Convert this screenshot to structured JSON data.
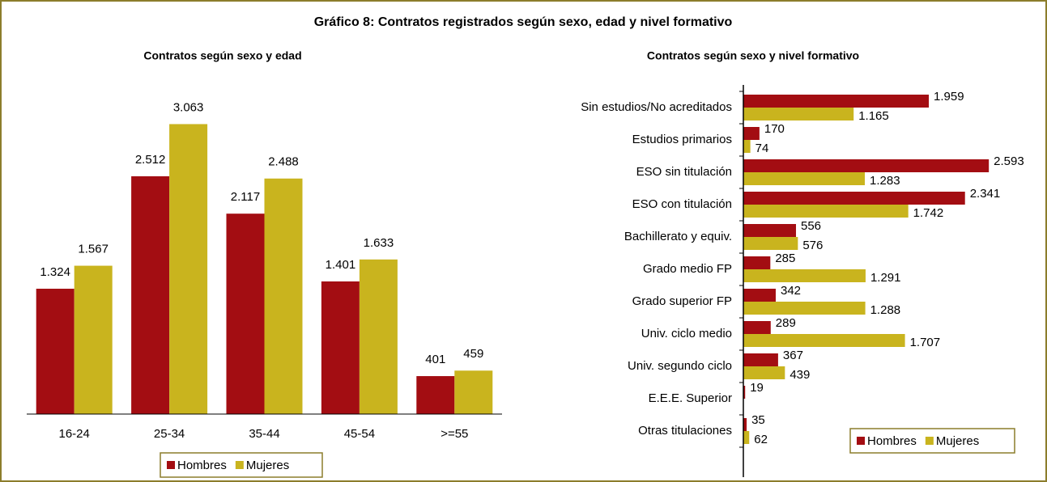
{
  "title": "Gráfico 8: Contratos registrados según sexo, edad y nivel formativo",
  "chart_data": [
    {
      "type": "bar",
      "title": "Contratos según sexo y edad",
      "categories": [
        "16-24",
        "25-34",
        "35-44",
        "45-54",
        ">=55"
      ],
      "series": [
        {
          "name": "Hombres",
          "color": "#a30d12",
          "values": [
            1324,
            2512,
            2117,
            1401,
            401
          ],
          "value_labels": [
            "1.324",
            "2.512",
            "2.117",
            "1.401",
            "401"
          ]
        },
        {
          "name": "Mujeres",
          "color": "#c9b41e",
          "values": [
            1567,
            3063,
            2488,
            1633,
            459
          ],
          "value_labels": [
            "1.567",
            "3.063",
            "2.488",
            "1.633",
            "459"
          ]
        }
      ],
      "ylim": [
        0,
        3400
      ],
      "legend": "bottom"
    },
    {
      "type": "hbar",
      "title": "Contratos según sexo y nivel formativo",
      "categories": [
        "Sin estudios/No acreditados",
        "Estudios primarios",
        "ESO sin titulación",
        "ESO con titulación",
        "Bachillerato y equiv.",
        "Grado medio FP",
        "Grado superior FP",
        "Univ. ciclo medio",
        "Univ. segundo ciclo",
        "E.E.E. Superior",
        "Otras titulaciones"
      ],
      "series": [
        {
          "name": "Hombres",
          "color": "#a30d12",
          "values": [
            1959,
            170,
            2593,
            2341,
            556,
            285,
            342,
            289,
            367,
            19,
            35
          ],
          "value_labels": [
            "1.959",
            "170",
            "2.593",
            "2.341",
            "556",
            "285",
            "342",
            "289",
            "367",
            "19",
            "35"
          ]
        },
        {
          "name": "Mujeres",
          "color": "#c9b41e",
          "values": [
            1165,
            74,
            1283,
            1742,
            576,
            1291,
            1288,
            1707,
            439,
            null,
            62
          ],
          "value_labels": [
            "1.165",
            "74",
            "1.283",
            "1.742",
            "576",
            "1.291",
            "1.288",
            "1.707",
            "439",
            null,
            "62"
          ]
        }
      ],
      "xlim": [
        0,
        2600
      ],
      "legend": "lower right"
    }
  ]
}
